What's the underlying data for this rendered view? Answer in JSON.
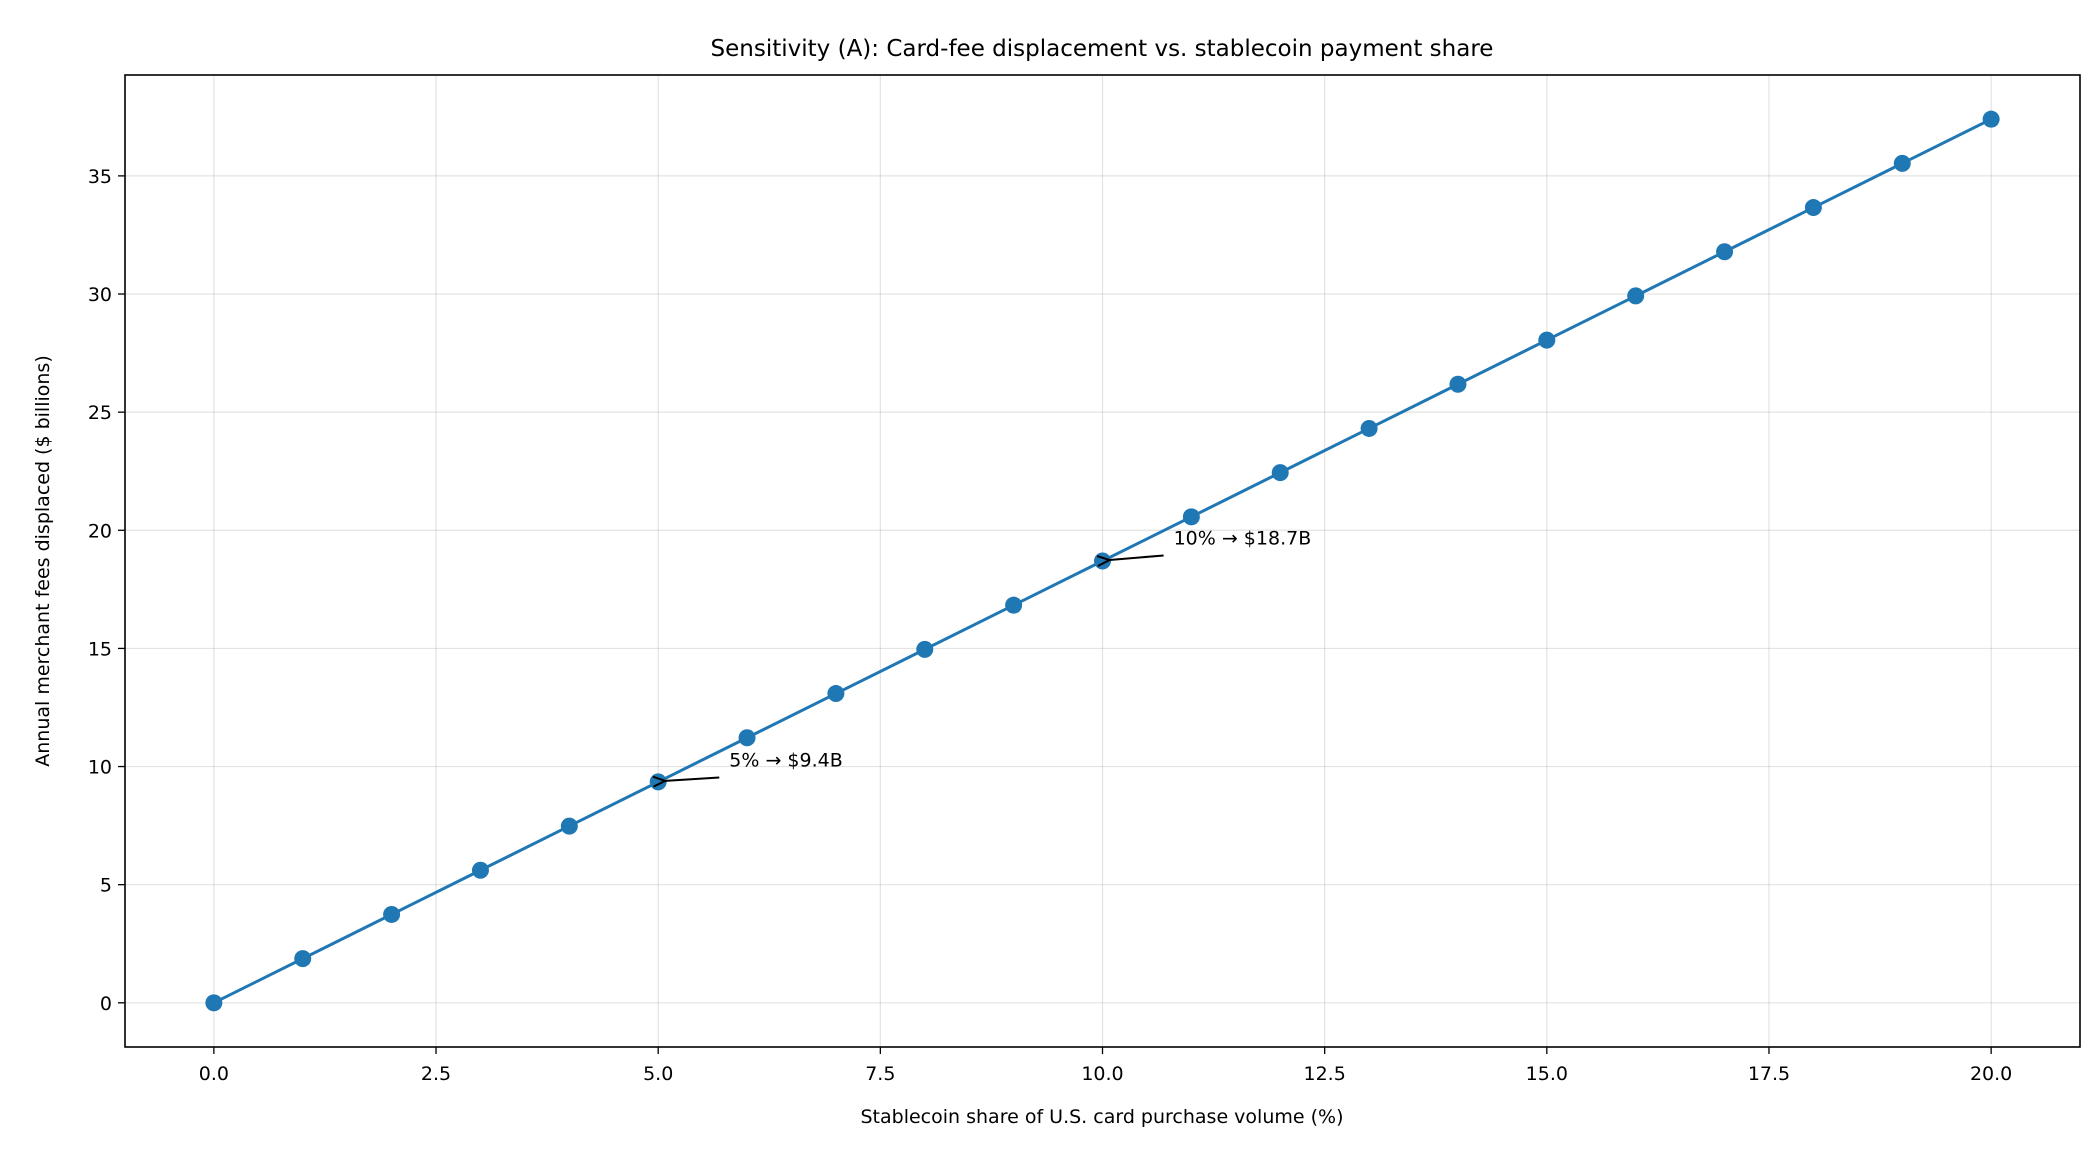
{
  "chart_data": {
    "type": "line",
    "title": "Sensitivity (A): Card-fee displacement vs. stablecoin payment share",
    "xlabel": "Stablecoin share of U.S. card purchase volume (%)",
    "ylabel": "Annual merchant fees displaced ($ billions)",
    "xlim": [
      -1,
      21
    ],
    "ylim": [
      -1.87,
      39.27
    ],
    "xticks": [
      "0.0",
      "2.5",
      "5.0",
      "7.5",
      "10.0",
      "12.5",
      "15.0",
      "17.5",
      "20.0"
    ],
    "yticks": [
      "0",
      "5",
      "10",
      "15",
      "20",
      "25",
      "30",
      "35"
    ],
    "grid": true,
    "series": [
      {
        "color": "#1f77b4",
        "marker": "circle",
        "x": [
          0,
          1,
          2,
          3,
          4,
          5,
          6,
          7,
          8,
          9,
          10,
          11,
          12,
          13,
          14,
          15,
          16,
          17,
          18,
          19,
          20
        ],
        "y": [
          0,
          1.87,
          3.74,
          5.61,
          7.48,
          9.35,
          11.22,
          13.09,
          14.96,
          16.83,
          18.7,
          20.57,
          22.44,
          24.31,
          26.18,
          28.05,
          29.92,
          31.79,
          33.66,
          35.53,
          37.4
        ]
      }
    ],
    "annotations": [
      {
        "text": "5% → $9.4B",
        "x": 5,
        "y": 9.35,
        "text_x": 5.8,
        "text_y": 10.0
      },
      {
        "text": "10% → $18.7B",
        "x": 10,
        "y": 18.7,
        "text_x": 10.8,
        "text_y": 19.4
      }
    ]
  }
}
